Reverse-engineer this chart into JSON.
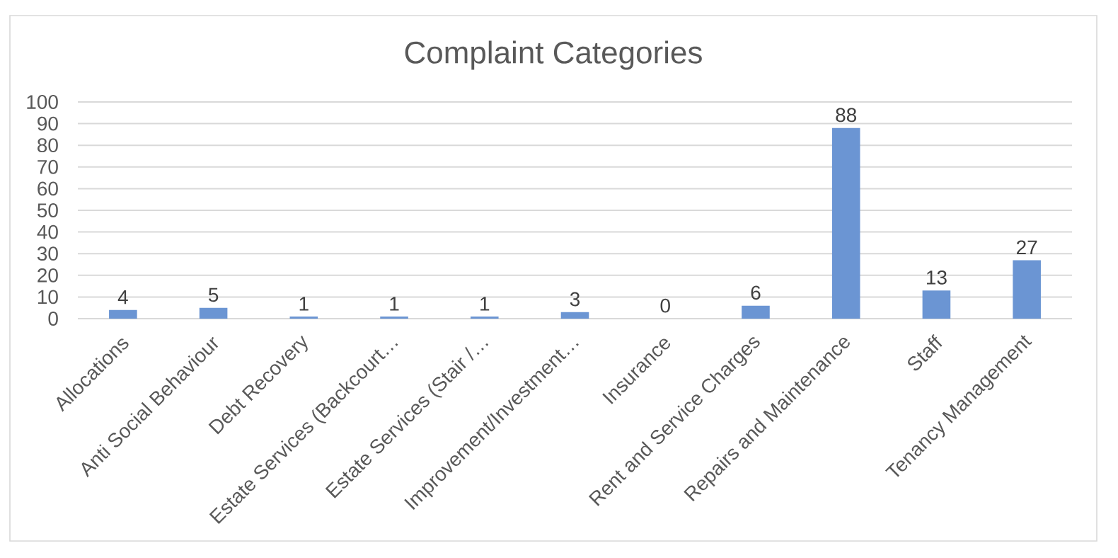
{
  "chart_data": {
    "type": "bar",
    "title": "Complaint Categories",
    "categories": [
      "Allocations",
      "Anti Social Behaviour",
      "Debt Recovery",
      "Estate Services (Backcourt…",
      "Estate Services (Stair /…",
      "Improvement/Investment…",
      "Insurance",
      "Rent and Service Charges",
      "Repairs and Maintenance",
      "Staff",
      "Tenancy Management"
    ],
    "values": [
      4,
      5,
      1,
      1,
      1,
      3,
      0,
      6,
      88,
      13,
      27
    ],
    "color": "#6b95d3",
    "ylim": [
      0,
      100
    ],
    "yticks": [
      0,
      10,
      20,
      30,
      40,
      50,
      60,
      70,
      80,
      90,
      100
    ],
    "grid": "y",
    "data_labels": true
  }
}
